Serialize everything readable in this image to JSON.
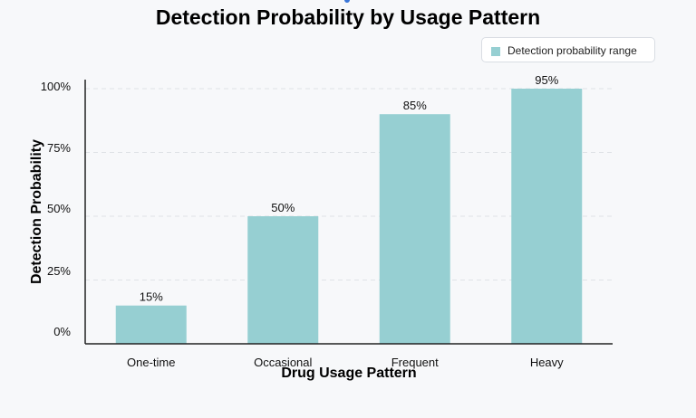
{
  "chart_data": {
    "type": "bar",
    "title": "Detection Probability by Usage Pattern",
    "xlabel": "Drug Usage Pattern",
    "ylabel": "Detection Probability",
    "categories": [
      "One-time",
      "Occasional",
      "Frequent",
      "Heavy"
    ],
    "series": [
      {
        "name": "Detection probability range",
        "values": [
          15,
          50,
          85,
          95
        ],
        "labels": [
          "15%",
          "50%",
          "85%",
          "95%"
        ],
        "color": "#96cfd2"
      }
    ],
    "y_ticks": [
      {
        "value": 0,
        "label": "0%"
      },
      {
        "value": 25,
        "label": "25%"
      },
      {
        "value": 50,
        "label": "50%"
      },
      {
        "value": 75,
        "label": "75%"
      },
      {
        "value": 100,
        "label": "100%"
      }
    ],
    "ylim": [
      0,
      100
    ],
    "grid": "horizontal dashed",
    "legend": "top-right"
  }
}
